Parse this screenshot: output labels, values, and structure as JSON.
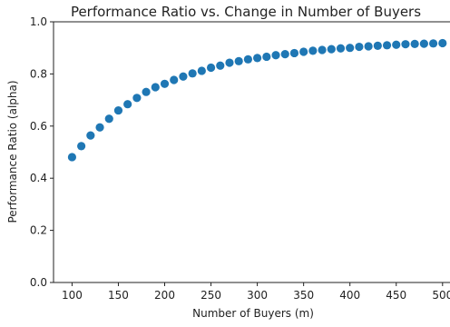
{
  "chart_data": {
    "type": "scatter",
    "title": "Performance Ratio vs. Change in Number of Buyers",
    "xlabel": "Number of Buyers (m)",
    "ylabel": "Performance Ratio (alpha)",
    "xlim": [
      80,
      510
    ],
    "ylim": [
      0,
      1.0
    ],
    "xticks": [
      100,
      150,
      200,
      250,
      300,
      350,
      400,
      450,
      500
    ],
    "yticks": [
      0.0,
      0.2,
      0.4,
      0.6,
      0.8,
      1.0
    ],
    "xtick_labels": [
      "100",
      "150",
      "200",
      "250",
      "300",
      "350",
      "400",
      "450",
      "500"
    ],
    "ytick_labels": [
      "0.0",
      "0.2",
      "0.4",
      "0.6",
      "0.8",
      "1.0"
    ],
    "grid": false,
    "marker_color": "#1f77b4",
    "series": [
      {
        "x": [
          100,
          110,
          120,
          130,
          140,
          150,
          160,
          170,
          180,
          190,
          200,
          210,
          220,
          230,
          240,
          250,
          260,
          270,
          280,
          290,
          300,
          310,
          320,
          330,
          340,
          350,
          360,
          370,
          380,
          390,
          400,
          410,
          420,
          430,
          440,
          450,
          460,
          470,
          480,
          490,
          500
        ],
        "y": [
          0.481,
          0.523,
          0.564,
          0.595,
          0.628,
          0.66,
          0.684,
          0.708,
          0.731,
          0.749,
          0.762,
          0.777,
          0.79,
          0.802,
          0.812,
          0.824,
          0.832,
          0.843,
          0.849,
          0.856,
          0.861,
          0.866,
          0.872,
          0.876,
          0.88,
          0.885,
          0.889,
          0.892,
          0.895,
          0.898,
          0.9,
          0.904,
          0.906,
          0.908,
          0.91,
          0.912,
          0.914,
          0.915,
          0.916,
          0.917,
          0.918
        ]
      }
    ]
  }
}
